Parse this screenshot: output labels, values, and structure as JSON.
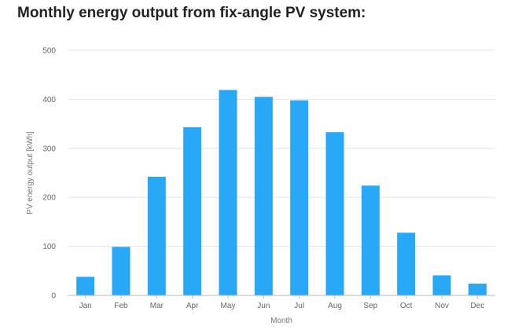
{
  "colors": {
    "bar": "#29a8f7",
    "grid": "#e6e6e6",
    "axis": "#bbbbbb"
  },
  "chart_data": {
    "type": "bar",
    "title": "Monthly energy output from fix-angle PV system:",
    "xlabel": "Month",
    "ylabel": "PV energy output [kWh]",
    "categories": [
      "Jan",
      "Feb",
      "Mar",
      "Apr",
      "May",
      "Jun",
      "Jul",
      "Aug",
      "Sep",
      "Oct",
      "Nov",
      "Dec"
    ],
    "values": [
      38,
      99,
      242,
      343,
      419,
      405,
      398,
      333,
      224,
      128,
      41,
      24
    ],
    "ylim": [
      0,
      500
    ],
    "yticks": [
      0,
      100,
      200,
      300,
      400,
      500
    ],
    "grid": true,
    "legend": "none"
  }
}
